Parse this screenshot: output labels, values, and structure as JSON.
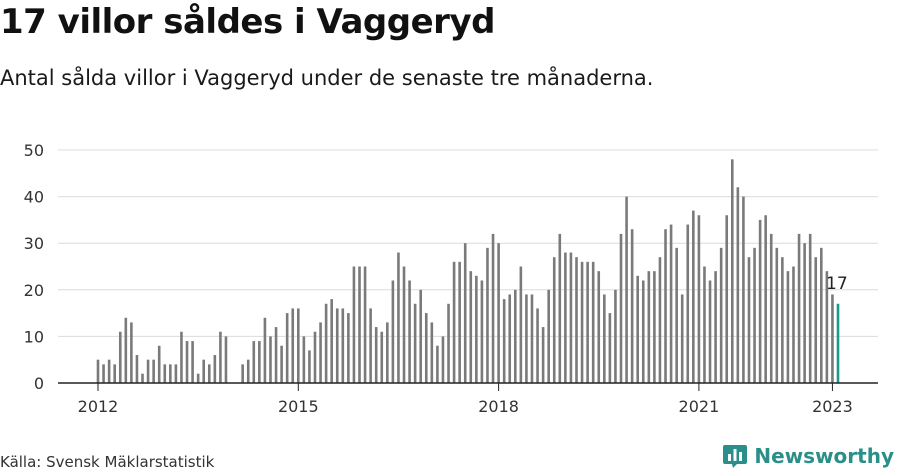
{
  "header": {
    "title": "17 villor såldes i Vaggeryd",
    "subtitle": "Antal sålda villor i Vaggeryd under de senaste tre månaderna."
  },
  "footer": {
    "source": "Källa: Svensk Mäklarstatistik",
    "brand": "Newsworthy",
    "brand_icon": "bar-chart-logo-icon"
  },
  "chart_data": {
    "type": "bar",
    "title": "",
    "xlabel": "",
    "ylabel": "",
    "ylim": [
      0,
      50
    ],
    "yticks": [
      0,
      10,
      20,
      30,
      40,
      50
    ],
    "grid": true,
    "legend": "none",
    "x_first_month": "2012-01",
    "x_last_month": "2023-01",
    "xtick_labels": [
      "2012",
      "2015",
      "2018",
      "2021",
      "2023"
    ],
    "xtick_months": [
      "2012-01",
      "2015-01",
      "2018-01",
      "2021-01",
      "2023-01"
    ],
    "bar_color": "#7a7a7a",
    "highlight_color": "#1a9a8e",
    "highlight_label": "17",
    "values": [
      5,
      4,
      5,
      4,
      11,
      14,
      13,
      6,
      2,
      5,
      5,
      8,
      4,
      4,
      4,
      11,
      9,
      9,
      2,
      5,
      4,
      6,
      11,
      10,
      null,
      null,
      4,
      5,
      9,
      9,
      14,
      10,
      12,
      8,
      15,
      16,
      16,
      10,
      7,
      11,
      13,
      17,
      18,
      16,
      16,
      15,
      25,
      25,
      25,
      16,
      12,
      11,
      13,
      22,
      28,
      25,
      22,
      17,
      20,
      15,
      13,
      8,
      10,
      17,
      26,
      26,
      30,
      24,
      23,
      22,
      29,
      32,
      30,
      18,
      19,
      20,
      25,
      19,
      19,
      16,
      12,
      20,
      27,
      32,
      28,
      28,
      27,
      26,
      26,
      26,
      24,
      19,
      15,
      20,
      32,
      40,
      33,
      23,
      22,
      24,
      24,
      27,
      33,
      34,
      29,
      19,
      34,
      37,
      36,
      25,
      22,
      24,
      29,
      36,
      48,
      42,
      40,
      27,
      29,
      35,
      36,
      32,
      29,
      27,
      24,
      25,
      32,
      30,
      32,
      27,
      29,
      24,
      19,
      17
    ]
  }
}
